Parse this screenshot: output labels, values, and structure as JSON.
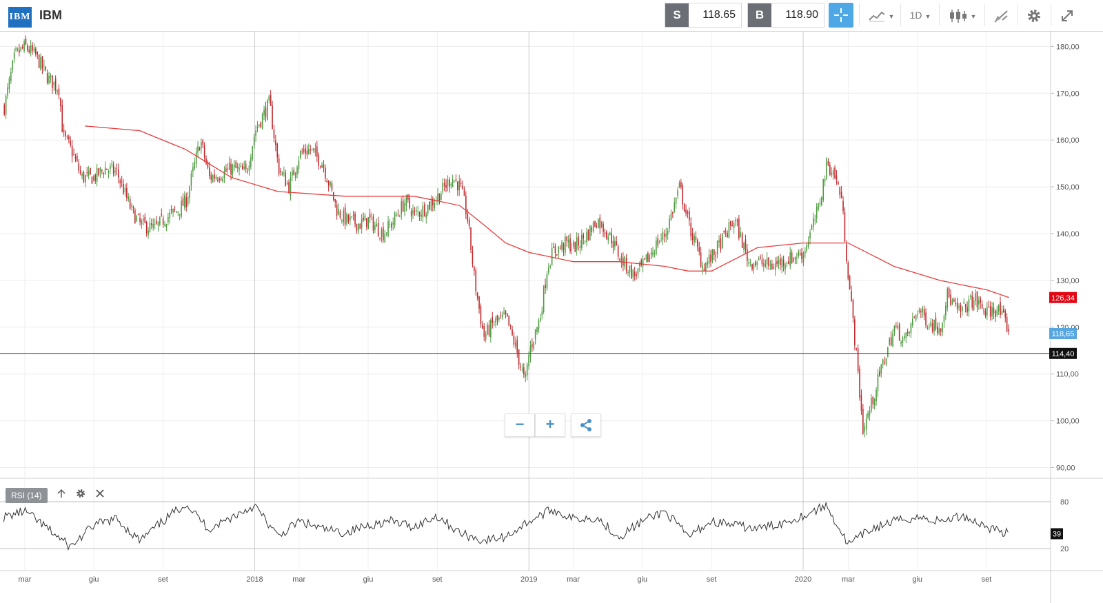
{
  "header": {
    "logo_text": "IBM",
    "symbol": "IBM",
    "sell_label": "S",
    "sell_price": "118.65",
    "buy_label": "B",
    "buy_price": "118.90",
    "interval": "1D",
    "icons": [
      "crosshair-icon",
      "line-chart-icon",
      "candlestick-icon",
      "drawing-icon",
      "gear-icon",
      "expand-icon"
    ]
  },
  "rsi": {
    "label": "RSI (14)",
    "value_tag": "39",
    "levels": [
      "80",
      "20"
    ],
    "icons": [
      "arrow-up-icon",
      "gear-icon",
      "close-icon"
    ]
  },
  "zoom": {
    "minus": "−",
    "plus": "+"
  },
  "colors": {
    "up": "#4c9a3f",
    "down": "#c0282d",
    "ma": "#e83a3a",
    "price_tag": "#56a6e0",
    "ma_tag": "#e30613",
    "hline_tag": "#111111",
    "accent": "#4fa8e6"
  },
  "chart_data": {
    "type": "candlestick",
    "y_ticks": [
      "180,00",
      "170,00",
      "160,00",
      "150,00",
      "140,00",
      "130,00",
      "120,00",
      "110,00",
      "100,00",
      "90,00"
    ],
    "ylim": [
      88,
      185
    ],
    "x_labels": [
      "mar",
      "giu",
      "set",
      "2018",
      "mar",
      "giu",
      "set",
      "2019",
      "mar",
      "giu",
      "set",
      "2020",
      "mar",
      "giu",
      "set"
    ],
    "price_tags": {
      "ma_value": "126,34",
      "last_price": "118,65",
      "hline_value": "114,40"
    },
    "indicators": [
      "MA (red line)",
      "RSI (14)"
    ],
    "close_series": [
      {
        "d": "2017-02",
        "v": 167
      },
      {
        "d": "2017-02-15",
        "v": 178
      },
      {
        "d": "2017-03",
        "v": 180
      },
      {
        "d": "2017-03-15",
        "v": 178
      },
      {
        "d": "2017-04",
        "v": 173
      },
      {
        "d": "2017-04-15",
        "v": 171
      },
      {
        "d": "2017-04-20",
        "v": 161
      },
      {
        "d": "2017-05",
        "v": 158
      },
      {
        "d": "2017-05-15",
        "v": 152
      },
      {
        "d": "2017-06",
        "v": 152
      },
      {
        "d": "2017-06-15",
        "v": 154
      },
      {
        "d": "2017-07",
        "v": 153
      },
      {
        "d": "2017-07-20",
        "v": 145
      },
      {
        "d": "2017-08",
        "v": 142
      },
      {
        "d": "2017-08-20",
        "v": 141
      },
      {
        "d": "2017-09",
        "v": 143
      },
      {
        "d": "2017-09-20",
        "v": 145
      },
      {
        "d": "2017-10",
        "v": 147
      },
      {
        "d": "2017-10-20",
        "v": 160
      },
      {
        "d": "2017-11",
        "v": 152
      },
      {
        "d": "2017-11-20",
        "v": 153
      },
      {
        "d": "2017-12",
        "v": 154
      },
      {
        "d": "2017-12-20",
        "v": 153
      },
      {
        "d": "2018-01",
        "v": 162
      },
      {
        "d": "2018-01-20",
        "v": 168
      },
      {
        "d": "2018-02",
        "v": 154
      },
      {
        "d": "2018-02-15",
        "v": 150
      },
      {
        "d": "2018-03",
        "v": 157
      },
      {
        "d": "2018-03-15",
        "v": 158
      },
      {
        "d": "2018-04",
        "v": 155
      },
      {
        "d": "2018-04-20",
        "v": 145
      },
      {
        "d": "2018-05",
        "v": 143
      },
      {
        "d": "2018-05-20",
        "v": 142
      },
      {
        "d": "2018-06",
        "v": 143
      },
      {
        "d": "2018-06-20",
        "v": 140
      },
      {
        "d": "2018-07",
        "v": 142
      },
      {
        "d": "2018-07-20",
        "v": 147
      },
      {
        "d": "2018-08",
        "v": 144
      },
      {
        "d": "2018-08-20",
        "v": 146
      },
      {
        "d": "2018-09",
        "v": 148
      },
      {
        "d": "2018-09-20",
        "v": 152
      },
      {
        "d": "2018-10",
        "v": 150
      },
      {
        "d": "2018-10-10",
        "v": 144
      },
      {
        "d": "2018-10-20",
        "v": 130
      },
      {
        "d": "2018-11",
        "v": 118
      },
      {
        "d": "2018-11-15",
        "v": 121
      },
      {
        "d": "2018-12",
        "v": 122
      },
      {
        "d": "2018-12-15",
        "v": 115
      },
      {
        "d": "2018-12-26",
        "v": 108
      },
      {
        "d": "2019-01",
        "v": 115
      },
      {
        "d": "2019-01-15",
        "v": 122
      },
      {
        "d": "2019-01-25",
        "v": 133
      },
      {
        "d": "2019-02",
        "v": 136
      },
      {
        "d": "2019-02-20",
        "v": 138
      },
      {
        "d": "2019-03",
        "v": 137
      },
      {
        "d": "2019-03-20",
        "v": 140
      },
      {
        "d": "2019-04",
        "v": 143
      },
      {
        "d": "2019-04-20",
        "v": 139
      },
      {
        "d": "2019-05",
        "v": 135
      },
      {
        "d": "2019-05-20",
        "v": 131
      },
      {
        "d": "2019-06",
        "v": 133
      },
      {
        "d": "2019-06-20",
        "v": 138
      },
      {
        "d": "2019-07",
        "v": 140
      },
      {
        "d": "2019-07-20",
        "v": 150
      },
      {
        "d": "2019-08",
        "v": 142
      },
      {
        "d": "2019-08-20",
        "v": 133
      },
      {
        "d": "2019-09",
        "v": 135
      },
      {
        "d": "2019-09-20",
        "v": 140
      },
      {
        "d": "2019-10",
        "v": 143
      },
      {
        "d": "2019-10-20",
        "v": 134
      },
      {
        "d": "2019-11",
        "v": 134
      },
      {
        "d": "2019-11-20",
        "v": 133
      },
      {
        "d": "2019-12",
        "v": 134
      },
      {
        "d": "2019-12-20",
        "v": 135
      },
      {
        "d": "2020-01",
        "v": 136
      },
      {
        "d": "2020-01-20",
        "v": 145
      },
      {
        "d": "2020-02",
        "v": 155
      },
      {
        "d": "2020-02-10",
        "v": 153
      },
      {
        "d": "2020-02-20",
        "v": 148
      },
      {
        "d": "2020-03",
        "v": 130
      },
      {
        "d": "2020-03-10",
        "v": 116
      },
      {
        "d": "2020-03-20",
        "v": 98
      },
      {
        "d": "2020-04",
        "v": 104
      },
      {
        "d": "2020-04-15",
        "v": 112
      },
      {
        "d": "2020-05",
        "v": 120
      },
      {
        "d": "2020-05-15",
        "v": 117
      },
      {
        "d": "2020-06",
        "v": 124
      },
      {
        "d": "2020-06-15",
        "v": 121
      },
      {
        "d": "2020-07",
        "v": 120
      },
      {
        "d": "2020-07-10",
        "v": 127
      },
      {
        "d": "2020-07-25",
        "v": 123
      },
      {
        "d": "2020-08",
        "v": 124
      },
      {
        "d": "2020-08-15",
        "v": 126
      },
      {
        "d": "2020-09",
        "v": 123
      },
      {
        "d": "2020-09-15",
        "v": 124
      },
      {
        "d": "2020-09-25",
        "v": 121
      },
      {
        "d": "2020-10",
        "v": 119
      }
    ],
    "ma_series": [
      {
        "d": "2017-05-20",
        "v": 163
      },
      {
        "d": "2017-08",
        "v": 162
      },
      {
        "d": "2017-10",
        "v": 158
      },
      {
        "d": "2017-12",
        "v": 152
      },
      {
        "d": "2018-02",
        "v": 149
      },
      {
        "d": "2018-05",
        "v": 148
      },
      {
        "d": "2018-08",
        "v": 148
      },
      {
        "d": "2018-09",
        "v": 147
      },
      {
        "d": "2018-10",
        "v": 146
      },
      {
        "d": "2018-11",
        "v": 142
      },
      {
        "d": "2018-12",
        "v": 138
      },
      {
        "d": "2019-01",
        "v": 136
      },
      {
        "d": "2019-03",
        "v": 134
      },
      {
        "d": "2019-05",
        "v": 134
      },
      {
        "d": "2019-07",
        "v": 133
      },
      {
        "d": "2019-08",
        "v": 132
      },
      {
        "d": "2019-09",
        "v": 132
      },
      {
        "d": "2019-11",
        "v": 137
      },
      {
        "d": "2020-01",
        "v": 138
      },
      {
        "d": "2020-03",
        "v": 138
      },
      {
        "d": "2020-05",
        "v": 133
      },
      {
        "d": "2020-07",
        "v": 130
      },
      {
        "d": "2020-09",
        "v": 128
      },
      {
        "d": "2020-10",
        "v": 126.34
      }
    ],
    "horizontal_line": 114.4,
    "rsi_series": [
      {
        "d": "2017-02",
        "v": 60
      },
      {
        "d": "2017-03",
        "v": 68
      },
      {
        "d": "2017-04",
        "v": 45
      },
      {
        "d": "2017-05",
        "v": 22
      },
      {
        "d": "2017-06",
        "v": 50
      },
      {
        "d": "2017-07",
        "v": 58
      },
      {
        "d": "2017-08",
        "v": 30
      },
      {
        "d": "2017-09",
        "v": 55
      },
      {
        "d": "2017-10",
        "v": 78
      },
      {
        "d": "2017-11",
        "v": 45
      },
      {
        "d": "2017-12",
        "v": 60
      },
      {
        "d": "2018-01",
        "v": 75
      },
      {
        "d": "2018-02",
        "v": 35
      },
      {
        "d": "2018-03",
        "v": 55
      },
      {
        "d": "2018-04",
        "v": 45
      },
      {
        "d": "2018-05",
        "v": 40
      },
      {
        "d": "2018-06",
        "v": 50
      },
      {
        "d": "2018-07",
        "v": 55
      },
      {
        "d": "2018-08",
        "v": 48
      },
      {
        "d": "2018-09",
        "v": 62
      },
      {
        "d": "2018-10",
        "v": 40
      },
      {
        "d": "2018-11",
        "v": 30
      },
      {
        "d": "2018-12",
        "v": 35
      },
      {
        "d": "2019-01",
        "v": 55
      },
      {
        "d": "2019-02",
        "v": 70
      },
      {
        "d": "2019-03",
        "v": 58
      },
      {
        "d": "2019-04",
        "v": 60
      },
      {
        "d": "2019-05",
        "v": 35
      },
      {
        "d": "2019-06",
        "v": 55
      },
      {
        "d": "2019-07",
        "v": 68
      },
      {
        "d": "2019-08",
        "v": 35
      },
      {
        "d": "2019-09",
        "v": 55
      },
      {
        "d": "2019-10",
        "v": 50
      },
      {
        "d": "2019-11",
        "v": 45
      },
      {
        "d": "2019-12",
        "v": 52
      },
      {
        "d": "2020-01",
        "v": 62
      },
      {
        "d": "2020-02",
        "v": 75
      },
      {
        "d": "2020-03",
        "v": 25
      },
      {
        "d": "2020-04",
        "v": 45
      },
      {
        "d": "2020-05",
        "v": 55
      },
      {
        "d": "2020-06",
        "v": 60
      },
      {
        "d": "2020-07",
        "v": 55
      },
      {
        "d": "2020-08",
        "v": 62
      },
      {
        "d": "2020-09",
        "v": 48
      },
      {
        "d": "2020-10",
        "v": 39
      }
    ]
  }
}
